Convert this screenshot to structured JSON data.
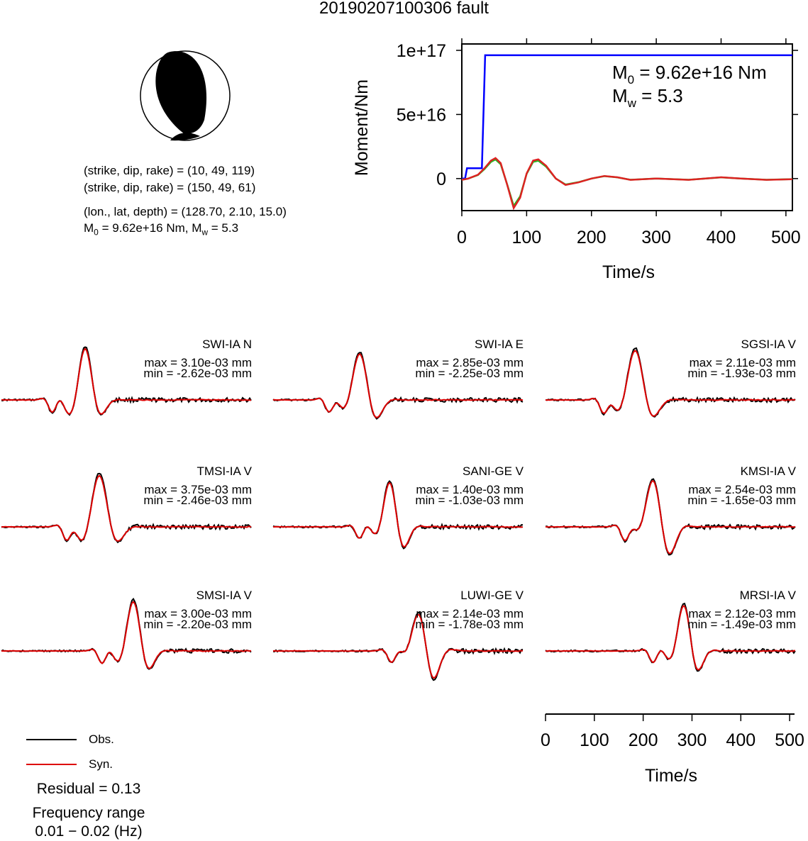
{
  "title": "20190207100306 fault",
  "mechanism": {
    "plane1": "(strike, dip, rake) = (10, 49, 119)",
    "plane2": "(strike, dip, rake) = (150, 49, 61)",
    "location": "(lon., lat, depth) = (128.70, 2.10, 15.0)",
    "moment_prefix": "M",
    "moment_sub": "0",
    "moment_value": " = 9.62e+16 Nm, M",
    "mw_sub": "w",
    "mw_value": " = 5.3"
  },
  "moment_plot": {
    "ylabel": "Moment/Nm",
    "xlabel": "Time/s",
    "m0_prefix": "M",
    "m0_sub": "0",
    "m0_value": " = 9.62e+16 Nm",
    "mw_prefix": "M",
    "mw_sub": "w",
    "mw_value": " = 5.3",
    "yticks": [
      "1e+17",
      "5e+16",
      "0"
    ],
    "xticks": [
      "0",
      "100",
      "200",
      "300",
      "400",
      "500"
    ]
  },
  "chart_data": [
    {
      "type": "line",
      "name": "moment-function",
      "xlabel": "Time/s",
      "ylabel": "Moment/Nm",
      "xlim": [
        0,
        510
      ],
      "ylim": [
        -2.5e+16,
        1.05e+17
      ],
      "grid": false,
      "colors": {
        "moment": "#0000ff",
        "stf_a": "#22bb22",
        "stf_b": "#dd2222"
      },
      "moment_curve": [
        [
          0,
          0
        ],
        [
          5,
          0
        ],
        [
          8,
          8000000000000000.0
        ],
        [
          30,
          8000000000000000.0
        ],
        [
          31,
          8000000000000000.0
        ],
        [
          36,
          9.62e+16
        ],
        [
          510,
          9.62e+16
        ]
      ],
      "stf_curve": [
        [
          0,
          -1000000000000000.0
        ],
        [
          10,
          0
        ],
        [
          25,
          3000000000000000.0
        ],
        [
          35,
          8000000000000000.0
        ],
        [
          45,
          1.4e+16
        ],
        [
          52,
          1.6e+16
        ],
        [
          60,
          1.2e+16
        ],
        [
          70,
          -5000000000000000.0
        ],
        [
          80,
          -2.3e+16
        ],
        [
          90,
          -1.5e+16
        ],
        [
          100,
          4000000000000000.0
        ],
        [
          110,
          1.4e+16
        ],
        [
          118,
          1.5e+16
        ],
        [
          130,
          1e+16
        ],
        [
          145,
          0
        ],
        [
          160,
          -5000000000000000.0
        ],
        [
          180,
          -3000000000000000.0
        ],
        [
          200,
          0
        ],
        [
          220,
          2000000000000000.0
        ],
        [
          240,
          1000000000000000.0
        ],
        [
          260,
          -1000000000000000.0
        ],
        [
          300,
          0
        ],
        [
          350,
          -1000000000000000.0
        ],
        [
          400,
          1000000000000000.0
        ],
        [
          430,
          0
        ],
        [
          470,
          -1000000000000000.0
        ],
        [
          510,
          -500000000000000.0
        ]
      ]
    },
    {
      "type": "line",
      "name": "waveform-fits",
      "xlabel": "Time/s",
      "xticks": [
        "0",
        "100",
        "200",
        "300",
        "400",
        "500"
      ],
      "colors": {
        "obs": "#000000",
        "syn": "#dd0000"
      },
      "panels": [
        {
          "station": "SWI-IA N",
          "max": "max = 3.10e-03 mm",
          "min": "min = -2.62e-03 mm"
        },
        {
          "station": "SWI-IA E",
          "max": "max = 2.85e-03 mm",
          "min": "min = -2.25e-03 mm"
        },
        {
          "station": "SGSI-IA V",
          "max": "max = 2.11e-03 mm",
          "min": "min = -1.93e-03 mm"
        },
        {
          "station": "TMSI-IA V",
          "max": "max = 3.75e-03 mm",
          "min": "min = -2.46e-03 mm"
        },
        {
          "station": "SANI-GE V",
          "max": "max = 1.40e-03 mm",
          "min": "min = -1.03e-03 mm"
        },
        {
          "station": "KMSI-IA V",
          "max": "max = 2.54e-03 mm",
          "min": "min = -1.65e-03 mm"
        },
        {
          "station": "SMSI-IA V",
          "max": "max = 3.00e-03 mm",
          "min": "min = -2.20e-03 mm"
        },
        {
          "station": "LUWI-GE V",
          "max": "max = 2.14e-03 mm",
          "min": "min = -1.78e-03 mm"
        },
        {
          "station": "MRSI-IA V",
          "max": "max = 2.12e-03 mm",
          "min": "min = -1.49e-03 mm"
        }
      ]
    }
  ],
  "legend": {
    "obs_label": "Obs.",
    "syn_label": "Syn."
  },
  "residual": "Residual = 0.13",
  "freq_label": "Frequency range",
  "freq_range": "0.01 − 0.02 (Hz)"
}
